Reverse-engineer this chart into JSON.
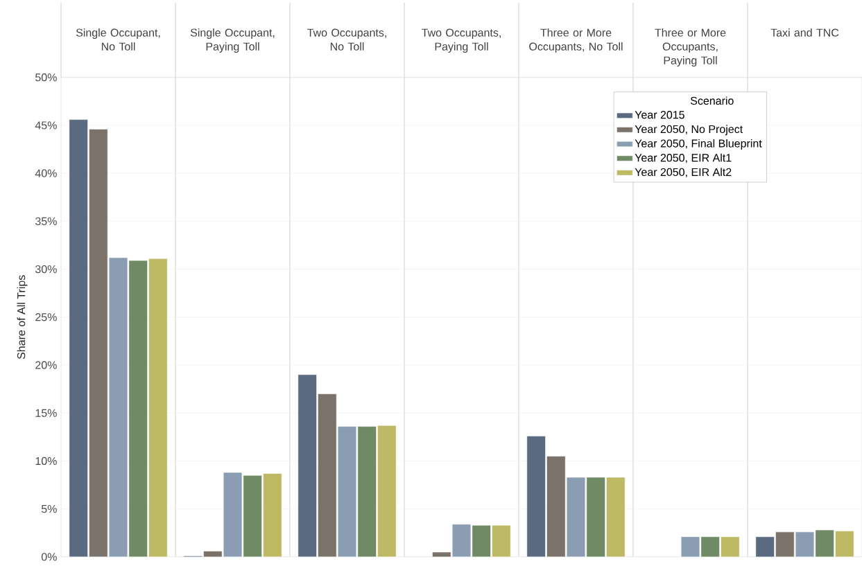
{
  "chart_data": {
    "type": "bar",
    "categories": [
      "Single Occupant, No Toll",
      "Single Occupant, Paying Toll",
      "Two Occupants, No Toll",
      "Two Occupants, Paying Toll",
      "Three or More Occupants, No Toll",
      "Three or More Occupants, Paying Toll",
      "Taxi and TNC"
    ],
    "ylabel": "Share of All Trips",
    "legend_title": "Scenario",
    "legend": "top right",
    "grid": "y",
    "ylim": [
      0,
      50
    ],
    "yticks": [
      {
        "value": 0,
        "label": "0%"
      },
      {
        "value": 5,
        "label": "5%"
      },
      {
        "value": 10,
        "label": "10%"
      },
      {
        "value": 15,
        "label": "15%"
      },
      {
        "value": 20,
        "label": "20%"
      },
      {
        "value": 25,
        "label": "25%"
      },
      {
        "value": 30,
        "label": "30%"
      },
      {
        "value": 35,
        "label": "35%"
      },
      {
        "value": 40,
        "label": "40%"
      },
      {
        "value": 45,
        "label": "45%"
      },
      {
        "value": 50,
        "label": "50%"
      }
    ],
    "series": [
      {
        "name": "Year 2015",
        "color": "#5a6a80",
        "values": [
          45.6,
          0.1,
          19.0,
          null,
          12.6,
          null,
          2.1
        ]
      },
      {
        "name": "Year 2050, No Project",
        "color": "#7b736a",
        "values": [
          44.6,
          0.6,
          17.0,
          0.5,
          10.5,
          null,
          2.6
        ]
      },
      {
        "name": "Year 2050, Final Blueprint",
        "color": "#8a9db3",
        "values": [
          31.2,
          8.8,
          13.6,
          3.4,
          8.3,
          2.1,
          2.6
        ]
      },
      {
        "name": "Year 2050, EIR Alt1",
        "color": "#6f8a64",
        "values": [
          30.9,
          8.5,
          13.6,
          3.3,
          8.3,
          2.1,
          2.8
        ]
      },
      {
        "name": "Year 2050, EIR Alt2",
        "color": "#bdb964",
        "values": [
          31.1,
          8.7,
          13.7,
          3.3,
          8.3,
          2.1,
          2.7
        ]
      }
    ]
  }
}
